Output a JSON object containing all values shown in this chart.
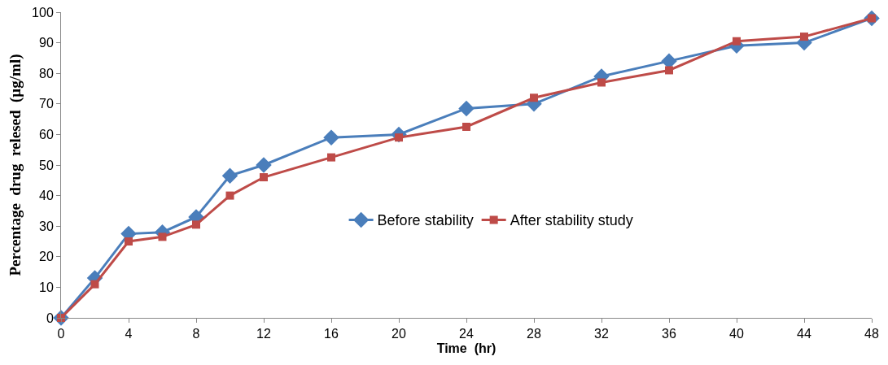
{
  "chart_data": {
    "type": "line",
    "xlabel": "Time  (hr)",
    "ylabel": "Percentage  drug  relesed  (µg/ml)",
    "x": [
      0,
      2,
      4,
      6,
      8,
      10,
      12,
      16,
      20,
      24,
      28,
      32,
      36,
      40,
      44,
      48
    ],
    "series": [
      {
        "name": "Before stability",
        "color": "#4a7ebb",
        "marker": "diamond",
        "values": [
          0,
          13,
          27.5,
          28,
          33,
          46.5,
          50,
          59,
          60,
          68.5,
          70,
          79,
          84,
          89,
          90,
          98
        ]
      },
      {
        "name": "After stability study",
        "color": "#be4b48",
        "marker": "square",
        "values": [
          0,
          11,
          25,
          26.5,
          30.5,
          40,
          46,
          52.5,
          59,
          62.5,
          72,
          77,
          81,
          90.5,
          92,
          98
        ]
      }
    ],
    "xlim": [
      0,
      48
    ],
    "xticks": [
      0,
      4,
      8,
      12,
      16,
      20,
      24,
      28,
      32,
      36,
      40,
      44,
      48
    ],
    "ylim": [
      0,
      100
    ],
    "yticks": [
      0,
      10,
      20,
      30,
      40,
      50,
      60,
      70,
      80,
      90,
      100
    ],
    "grid": false,
    "legend": "right",
    "line_style": "solid"
  }
}
